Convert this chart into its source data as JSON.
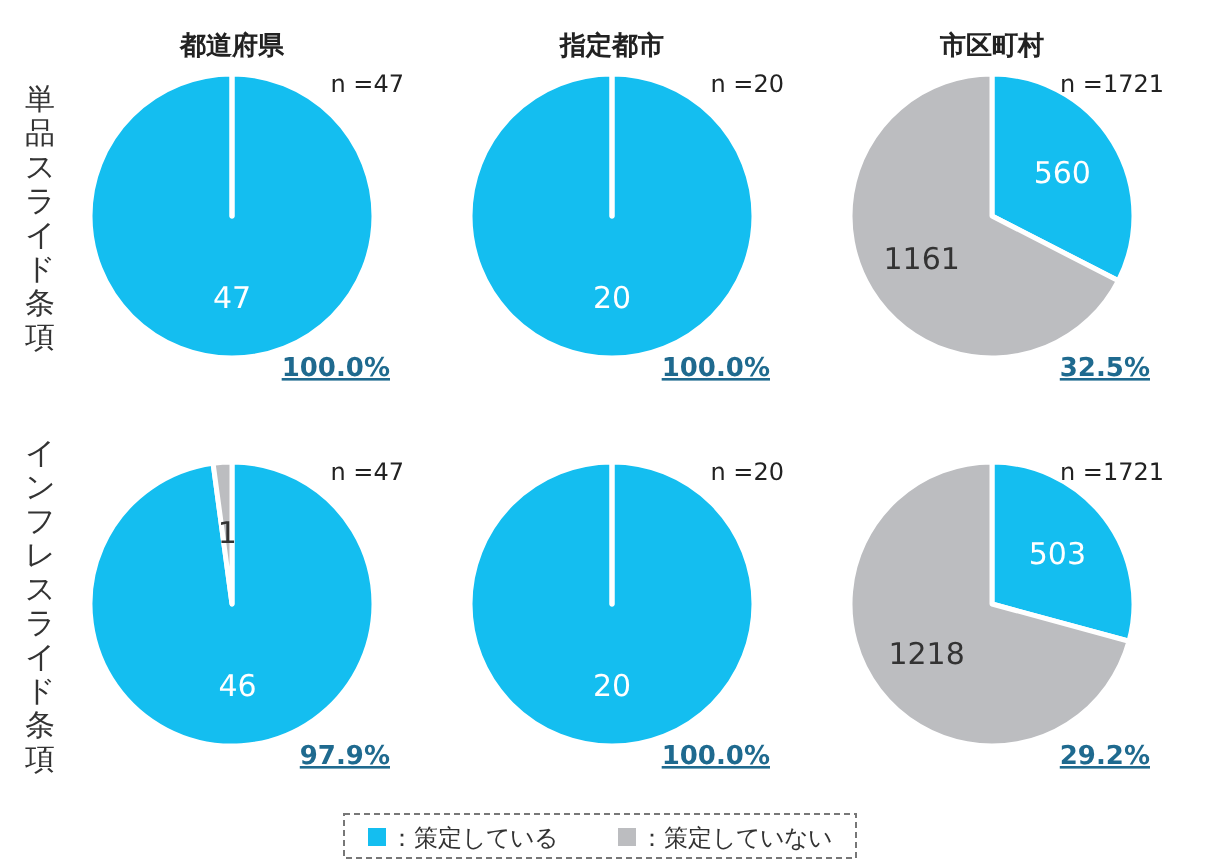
{
  "chart_data": [
    {
      "type": "pie",
      "title": "都道府県",
      "ylabel": "単品スライド条項",
      "categories": [
        null,
        null
      ],
      "values": [
        47,
        0
      ],
      "value_labels": [
        "47",
        null
      ],
      "colors": [
        "#14bef0",
        "#bcbdc0"
      ],
      "annotations": [
        "n =47",
        "100.0%"
      ]
    },
    {
      "type": "pie",
      "title": "指定都市",
      "categories": [
        null,
        null
      ],
      "values": [
        20,
        0
      ],
      "value_labels": [
        "20",
        null
      ],
      "colors": [
        "#14bef0",
        "#bcbdc0"
      ],
      "annotations": [
        "n =20",
        "100.0%"
      ]
    },
    {
      "type": "pie",
      "title": "市区町村",
      "categories": [
        null,
        null
      ],
      "values": [
        560,
        1161
      ],
      "value_labels": [
        "560",
        "1161"
      ],
      "colors": [
        "#14bef0",
        "#bcbdc0"
      ],
      "annotations": [
        "n =1721",
        "32.5%"
      ]
    },
    {
      "type": "pie",
      "ylabel": "インフレスライド条項",
      "categories": [
        null,
        null
      ],
      "values": [
        46,
        1
      ],
      "value_labels": [
        "46",
        "1"
      ],
      "colors": [
        "#14bef0",
        "#bcbdc0"
      ],
      "annotations": [
        "n =47",
        "97.9%"
      ]
    },
    {
      "type": "pie",
      "categories": [
        null,
        null
      ],
      "values": [
        20,
        0
      ],
      "value_labels": [
        "20",
        null
      ],
      "colors": [
        "#14bef0",
        "#bcbdc0"
      ],
      "annotations": [
        "n =20",
        "100.0%"
      ]
    },
    {
      "type": "pie",
      "categories": [
        "：策定している",
        "：策定していない"
      ],
      "values": [
        503,
        1218
      ],
      "value_labels": [
        "503",
        "1218"
      ],
      "colors": [
        "#14bef0",
        "#bcbdc0"
      ],
      "annotations": [
        "n =1721",
        "29.2%"
      ],
      "legend": "bottom"
    }
  ]
}
